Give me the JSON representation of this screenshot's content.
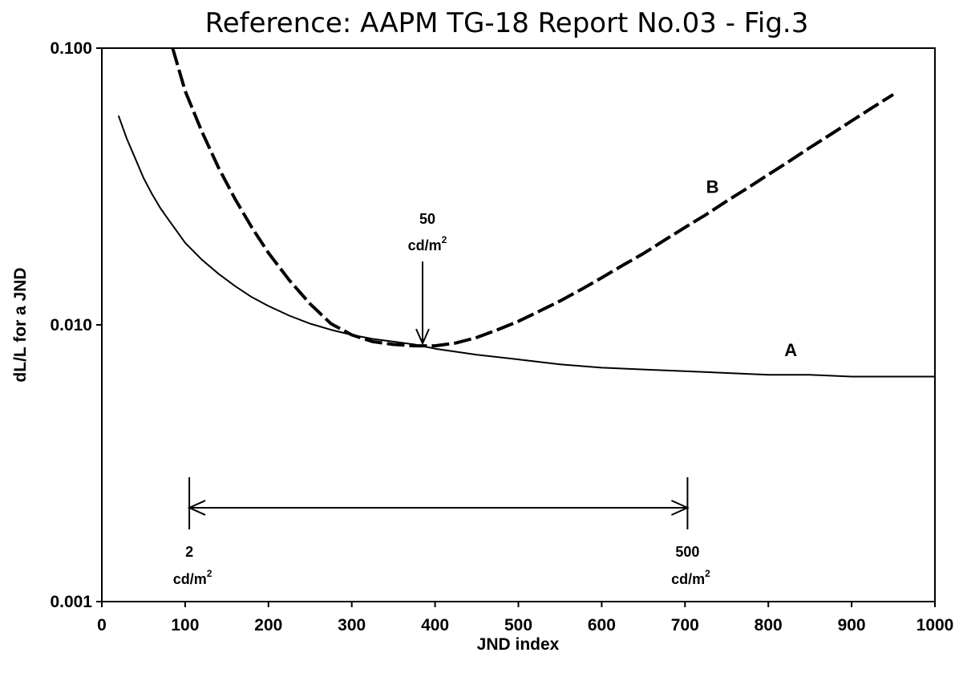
{
  "chart_data": {
    "type": "line",
    "title": "Reference: AAPM TG-18 Report No.03 - Fig.3",
    "xlabel": "JND index",
    "ylabel": "dL/L for a JND",
    "xlim": [
      0,
      1000
    ],
    "ylim": [
      0.001,
      0.1
    ],
    "yscale": "log",
    "grid": false,
    "x_ticks": [
      "0",
      "100",
      "200",
      "300",
      "400",
      "500",
      "600",
      "700",
      "800",
      "900",
      "1000"
    ],
    "y_ticks": [
      "0.001",
      "0.010",
      "0.100"
    ],
    "series": [
      {
        "name": "A",
        "style": "solid",
        "x": [
          20,
          30,
          40,
          50,
          60,
          70,
          80,
          90,
          100,
          120,
          140,
          160,
          180,
          200,
          225,
          250,
          275,
          300,
          325,
          350,
          375,
          400,
          450,
          500,
          550,
          600,
          650,
          700,
          750,
          800,
          850,
          900,
          950,
          1000
        ],
        "y": [
          0.057,
          0.047,
          0.04,
          0.034,
          0.0298,
          0.0265,
          0.024,
          0.0218,
          0.0198,
          0.0172,
          0.0153,
          0.0138,
          0.0126,
          0.0117,
          0.0108,
          0.0101,
          0.0096,
          0.0092,
          0.0089,
          0.0087,
          0.0085,
          0.0082,
          0.0078,
          0.0075,
          0.0072,
          0.007,
          0.0069,
          0.0068,
          0.0067,
          0.0066,
          0.0066,
          0.0065,
          0.0065,
          0.0065
        ]
      },
      {
        "name": "B",
        "style": "dashed",
        "x": [
          85,
          100,
          120,
          140,
          160,
          180,
          200,
          225,
          250,
          275,
          300,
          325,
          350,
          375,
          400,
          425,
          450,
          475,
          500,
          525,
          550,
          575,
          600,
          625,
          650,
          675,
          700,
          725,
          750,
          775,
          800,
          825,
          850,
          875,
          900,
          925,
          950
        ],
        "y": [
          0.1,
          0.07,
          0.05,
          0.037,
          0.0285,
          0.0225,
          0.0182,
          0.0145,
          0.0119,
          0.0101,
          0.0092,
          0.0087,
          0.0085,
          0.0084,
          0.0084,
          0.0086,
          0.009,
          0.0096,
          0.0103,
          0.0112,
          0.0122,
          0.0134,
          0.0148,
          0.0164,
          0.0181,
          0.0202,
          0.0225,
          0.025,
          0.028,
          0.0312,
          0.0349,
          0.039,
          0.0437,
          0.0488,
          0.0546,
          0.061,
          0.068
        ]
      }
    ],
    "annotations": {
      "curve_labels": [
        {
          "text": "B",
          "x": 733,
          "y": 0.03
        },
        {
          "text": "A",
          "x": 827,
          "y": 0.0077
        }
      ],
      "arrow_50": {
        "line1": "50",
        "line2": "cd/m",
        "sup": "2",
        "x": 385
      },
      "range": {
        "left": {
          "line1": "2",
          "line2": "cd/m",
          "sup": "2",
          "x": 105
        },
        "right": {
          "line1": "500",
          "line2": "cd/m",
          "sup": "2",
          "x": 703
        }
      }
    }
  }
}
